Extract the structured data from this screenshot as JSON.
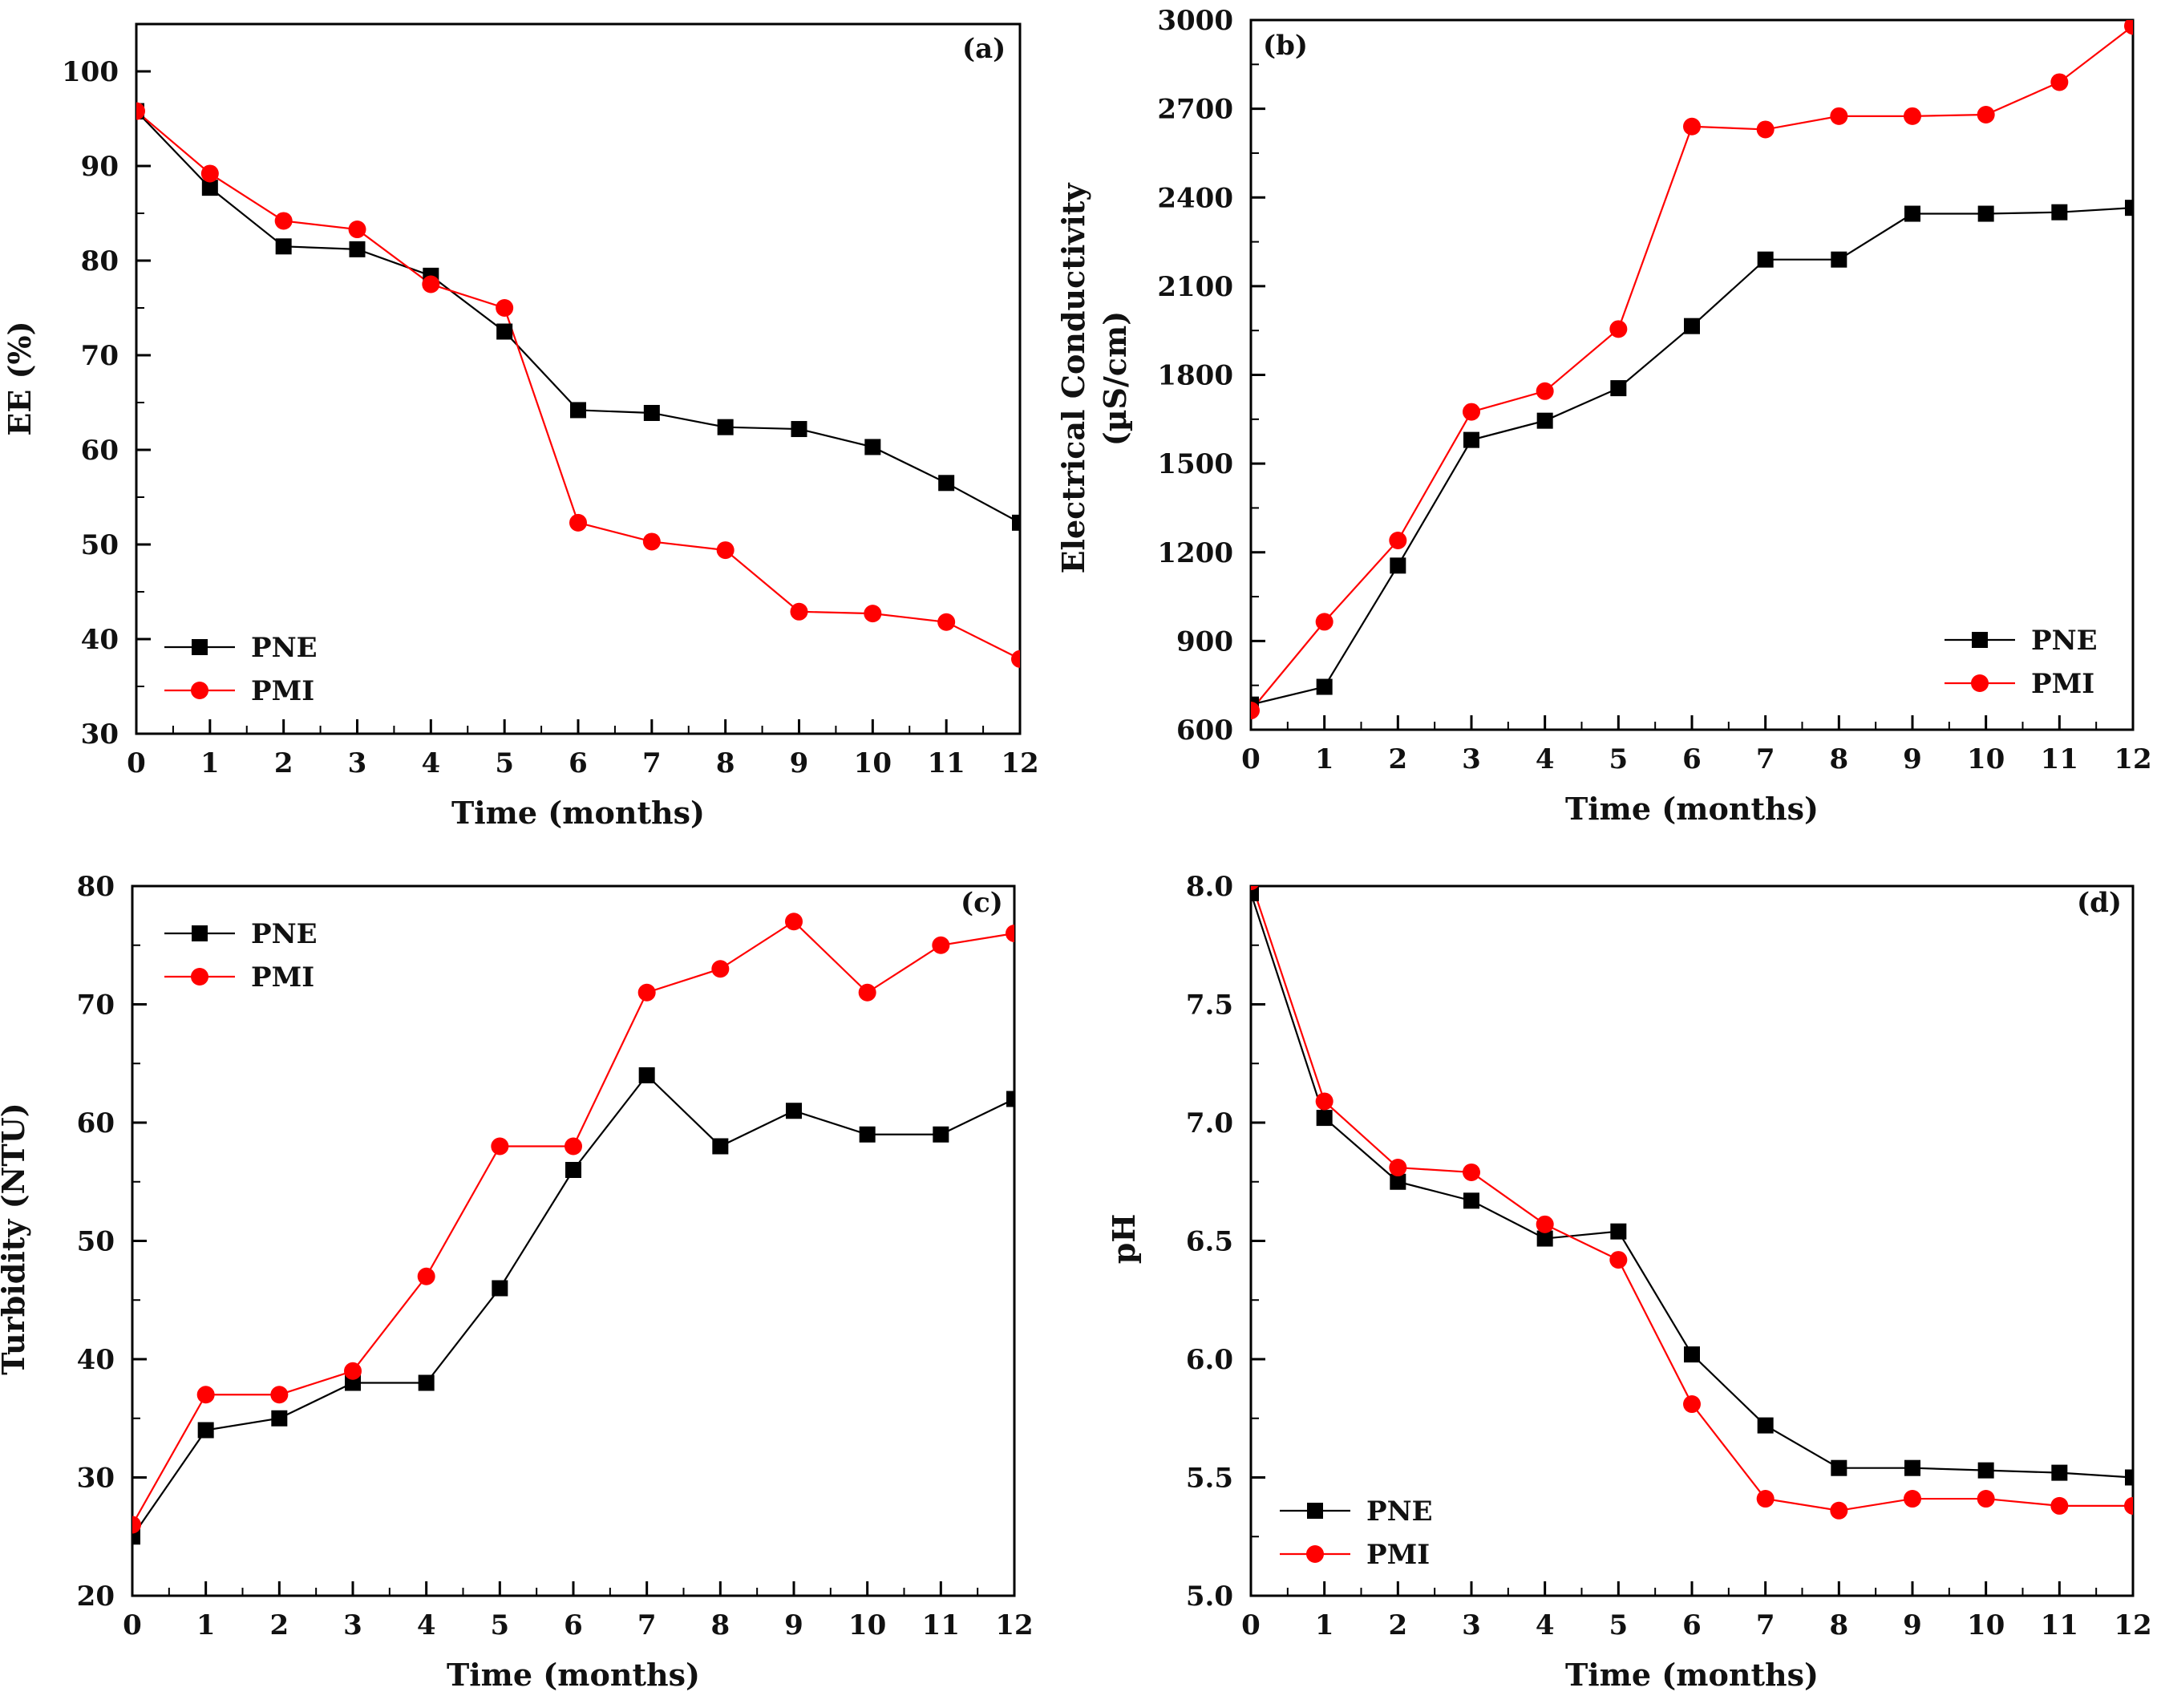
{
  "chart_data": [
    {
      "id": "a",
      "type": "line",
      "panel_label": "(a)",
      "xlabel": "Time (months)",
      "ylabel": "EE (%)",
      "xlim": [
        0,
        12
      ],
      "ylim": [
        30,
        105
      ],
      "xticks": [
        0,
        1,
        2,
        3,
        4,
        5,
        6,
        7,
        8,
        9,
        10,
        11,
        12
      ],
      "yticks": [
        30,
        40,
        50,
        60,
        70,
        80,
        90,
        100
      ],
      "legend_position": "bottom-left",
      "series": [
        {
          "name": "PNE",
          "color": "#000000",
          "marker": "square",
          "x": [
            0,
            1,
            2,
            3,
            4,
            5,
            6,
            7,
            8,
            9,
            10,
            11,
            12
          ],
          "values": [
            95.8,
            87.7,
            81.5,
            81.2,
            78.4,
            72.5,
            64.2,
            63.9,
            62.4,
            62.2,
            60.3,
            56.5,
            52.3
          ]
        },
        {
          "name": "PMI",
          "color": "#ff0000",
          "marker": "circle",
          "x": [
            0,
            1,
            2,
            3,
            4,
            5,
            6,
            7,
            8,
            9,
            10,
            11,
            12
          ],
          "values": [
            95.8,
            89.2,
            84.2,
            83.3,
            77.5,
            75.0,
            52.3,
            50.3,
            49.4,
            42.9,
            42.7,
            41.8,
            37.9
          ]
        }
      ]
    },
    {
      "id": "b",
      "type": "line",
      "panel_label": "(b)",
      "xlabel": "Time (months)",
      "ylabel": "Electrical Conductivity",
      "ylabel2": "(µS/cm)",
      "xlim": [
        0,
        12
      ],
      "ylim": [
        600,
        3000
      ],
      "xticks": [
        0,
        1,
        2,
        3,
        4,
        5,
        6,
        7,
        8,
        9,
        10,
        11,
        12
      ],
      "yticks": [
        600,
        900,
        1200,
        1500,
        1800,
        2100,
        2400,
        2700,
        3000
      ],
      "legend_position": "bottom-right",
      "series": [
        {
          "name": "PNE",
          "color": "#000000",
          "marker": "square",
          "x": [
            0,
            1,
            2,
            3,
            4,
            5,
            6,
            7,
            8,
            9,
            10,
            11,
            12
          ],
          "values": [
            685,
            745,
            1155,
            1580,
            1645,
            1755,
            1965,
            2190,
            2190,
            2345,
            2345,
            2350,
            2365
          ]
        },
        {
          "name": "PMI",
          "color": "#ff0000",
          "marker": "circle",
          "x": [
            0,
            1,
            2,
            3,
            4,
            5,
            6,
            7,
            8,
            9,
            10,
            11,
            12
          ],
          "values": [
            665,
            965,
            1240,
            1675,
            1745,
            1955,
            2640,
            2630,
            2675,
            2675,
            2680,
            2790,
            2980
          ]
        }
      ]
    },
    {
      "id": "c",
      "type": "line",
      "panel_label": "(c)",
      "xlabel": "Time (months)",
      "ylabel": "Turbidity (NTU)",
      "xlim": [
        0,
        12
      ],
      "ylim": [
        20,
        80
      ],
      "xticks": [
        0,
        1,
        2,
        3,
        4,
        5,
        6,
        7,
        8,
        9,
        10,
        11,
        12
      ],
      "yticks": [
        20,
        30,
        40,
        50,
        60,
        70,
        80
      ],
      "legend_position": "top-left",
      "series": [
        {
          "name": "PNE",
          "color": "#000000",
          "marker": "square",
          "x": [
            0,
            1,
            2,
            3,
            4,
            5,
            6,
            7,
            8,
            9,
            10,
            11,
            12
          ],
          "values": [
            25,
            34,
            35,
            38,
            38,
            46,
            56,
            64,
            58,
            61,
            59,
            59,
            62
          ]
        },
        {
          "name": "PMI",
          "color": "#ff0000",
          "marker": "circle",
          "x": [
            0,
            1,
            2,
            3,
            4,
            5,
            6,
            7,
            8,
            9,
            10,
            11,
            12
          ],
          "values": [
            26,
            37,
            37,
            39,
            47,
            58,
            58,
            71,
            73,
            77,
            71,
            75,
            76
          ]
        }
      ]
    },
    {
      "id": "d",
      "type": "line",
      "panel_label": "(d)",
      "xlabel": "Time (months)",
      "ylabel": "pH",
      "xlim": [
        0,
        12
      ],
      "ylim": [
        5.0,
        8.0
      ],
      "xticks": [
        0,
        1,
        2,
        3,
        4,
        5,
        6,
        7,
        8,
        9,
        10,
        11,
        12
      ],
      "yticks": [
        5.0,
        5.5,
        6.0,
        6.5,
        7.0,
        7.5,
        8.0
      ],
      "ytick_labels": [
        "5.0",
        "5.5",
        "6.0",
        "6.5",
        "7.0",
        "7.5",
        "8.0"
      ],
      "legend_position": "bottom-left",
      "series": [
        {
          "name": "PNE",
          "color": "#000000",
          "marker": "square",
          "x": [
            0,
            1,
            2,
            3,
            4,
            5,
            6,
            7,
            8,
            9,
            10,
            11,
            12
          ],
          "values": [
            7.97,
            7.02,
            6.75,
            6.67,
            6.51,
            6.54,
            6.02,
            5.72,
            5.54,
            5.54,
            5.53,
            5.52,
            5.5
          ]
        },
        {
          "name": "PMI",
          "color": "#ff0000",
          "marker": "circle",
          "x": [
            0,
            1,
            2,
            3,
            4,
            5,
            6,
            7,
            8,
            9,
            10,
            11,
            12
          ],
          "values": [
            8.02,
            7.09,
            6.81,
            6.79,
            6.57,
            6.42,
            5.81,
            5.41,
            5.36,
            5.41,
            5.41,
            5.38,
            5.38
          ]
        }
      ]
    }
  ]
}
